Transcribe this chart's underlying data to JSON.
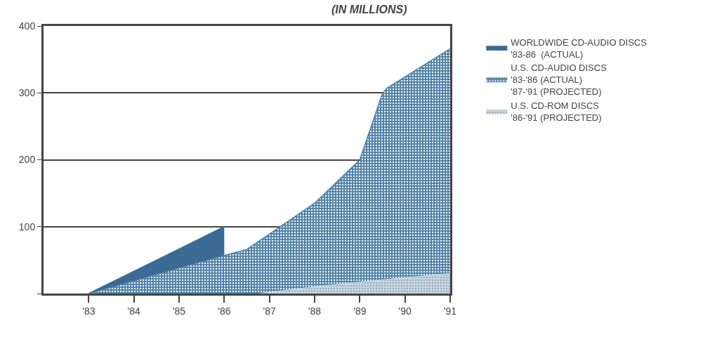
{
  "chart_data": {
    "type": "area",
    "title": "(IN MILLIONS)",
    "xlim": [
      1982,
      1991
    ],
    "xticks": [
      {
        "value": 1983,
        "label": "'83"
      },
      {
        "value": 1984,
        "label": "'84"
      },
      {
        "value": 1985,
        "label": "'85"
      },
      {
        "value": 1986,
        "label": "'86"
      },
      {
        "value": 1987,
        "label": "'87"
      },
      {
        "value": 1988,
        "label": "'88"
      },
      {
        "value": 1989,
        "label": "'89"
      },
      {
        "value": 1990,
        "label": "'90"
      },
      {
        "value": 1991,
        "label": "'91"
      }
    ],
    "ylim": [
      0,
      400
    ],
    "yticks": [
      {
        "value": 0,
        "label": null
      },
      100,
      200,
      300,
      400
    ],
    "grid": "y",
    "legend": "right",
    "series": [
      {
        "name": "WORLDWIDE CD-AUDIO DISCS\n'83-86  (ACTUAL)",
        "color": "#3b6b94",
        "x": [
          1983,
          1986
        ],
        "values": [
          0,
          100
        ]
      },
      {
        "name": "U.S. CD-AUDIO DISCS\n'83-'86 (ACTUAL)\n'87-'91 (PROJECTED)",
        "color": "#4f81a8",
        "x": [
          1983,
          1986,
          1986.5,
          1988,
          1989,
          1989.5,
          1989.6,
          1991
        ],
        "values": [
          0,
          57,
          66,
          135,
          200,
          299,
          307,
          366
        ]
      },
      {
        "name": "U.S. CD-ROM DISCS\n'86-'91 (PROJECTED)",
        "color": "#c9d6e0",
        "x": [
          1986.8,
          1988,
          1989,
          1991
        ],
        "values": [
          0,
          10,
          17,
          30
        ]
      }
    ]
  }
}
